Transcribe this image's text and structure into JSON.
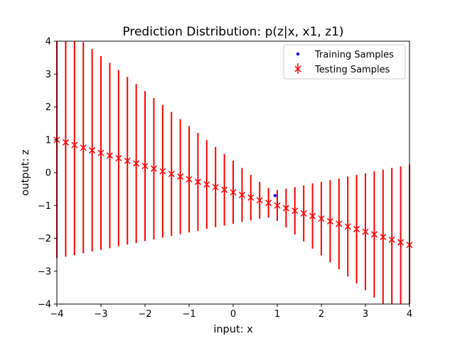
{
  "chart_data": {
    "type": "scatter",
    "title": "Prediction Distribution:  p(z|x, x1, z1)",
    "xlabel": "input: x",
    "ylabel": "output: z",
    "xlim": [
      -4,
      4
    ],
    "ylim": [
      -4,
      4
    ],
    "xticks": [
      -4,
      -3,
      -2,
      -1,
      0,
      1,
      2,
      3,
      4
    ],
    "yticks": [
      -4,
      -3,
      -2,
      -1,
      0,
      1,
      2,
      3,
      4
    ],
    "xtick_labels": [
      "−4",
      "−3",
      "−2",
      "−1",
      "0",
      "1",
      "2",
      "3",
      "4"
    ],
    "ytick_labels": [
      "−4",
      "−3",
      "−2",
      "−1",
      "0",
      "1",
      "2",
      "3",
      "4"
    ],
    "grid": false,
    "legend_position": "top-right",
    "series": [
      {
        "name": "Training Samples",
        "kind": "points",
        "color": "#0000ff",
        "x": [
          0.95
        ],
        "y": [
          -0.7
        ]
      },
      {
        "name": "Testing Samples",
        "kind": "errorbar",
        "color": "#ff0000",
        "x": [
          -4.0,
          -3.8,
          -3.6,
          -3.4,
          -3.2,
          -3.0,
          -2.8,
          -2.6,
          -2.4,
          -2.2,
          -2.0,
          -1.8,
          -1.6,
          -1.4,
          -1.2,
          -1.0,
          -0.8,
          -0.6,
          -0.4,
          -0.2,
          0.0,
          0.2,
          0.4,
          0.6,
          0.8,
          1.0,
          1.2,
          1.4,
          1.6,
          1.8,
          2.0,
          2.2,
          2.4,
          2.6,
          2.8,
          3.0,
          3.2,
          3.4,
          3.6,
          3.8,
          4.0
        ],
        "y": [
          1.0,
          0.92,
          0.84,
          0.76,
          0.68,
          0.6,
          0.52,
          0.44,
          0.36,
          0.28,
          0.2,
          0.12,
          0.04,
          -0.04,
          -0.12,
          -0.2,
          -0.28,
          -0.36,
          -0.44,
          -0.52,
          -0.6,
          -0.68,
          -0.76,
          -0.84,
          -0.92,
          -1.0,
          -1.08,
          -1.16,
          -1.24,
          -1.32,
          -1.4,
          -1.48,
          -1.56,
          -1.64,
          -1.72,
          -1.8,
          -1.88,
          -1.96,
          -2.04,
          -2.12,
          -2.2
        ],
        "yerr": [
          3.6,
          3.48,
          3.35,
          3.21,
          3.08,
          2.95,
          2.82,
          2.68,
          2.55,
          2.42,
          2.28,
          2.15,
          2.02,
          1.89,
          1.75,
          1.62,
          1.49,
          1.35,
          1.22,
          1.09,
          0.96,
          0.82,
          0.69,
          0.56,
          0.45,
          0.47,
          0.59,
          0.72,
          0.85,
          0.99,
          1.12,
          1.25,
          1.38,
          1.52,
          1.65,
          1.78,
          1.92,
          2.05,
          2.18,
          2.31,
          2.45
        ]
      }
    ]
  }
}
